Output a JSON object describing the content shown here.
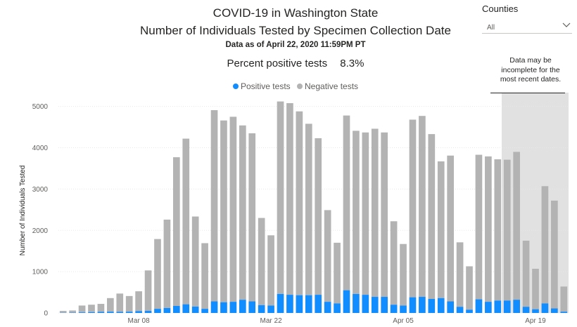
{
  "header": {
    "title_line1": "COVID-19 in Washington State",
    "title_line2": "Number of Individuals Tested by Specimen Collection Date",
    "as_of": "Data as of April 22, 2020 11:59PM PT",
    "percent_label": "Percent positive tests",
    "percent_value": "8.3%"
  },
  "filter": {
    "label": "Counties",
    "value": "All"
  },
  "note": {
    "text": "Data may be incomplete for the most recent dates."
  },
  "colors": {
    "positive": "#118DFF",
    "negative": "#B3B3B3",
    "incomplete_shade": "#E1E1E1",
    "grid": "#E8E8E8"
  },
  "chart_data": {
    "type": "bar",
    "stacked": true,
    "title": "Number of Individuals Tested by Specimen Collection Date",
    "xlabel": "",
    "ylabel": "Number of Individuals Tested",
    "ylim": [
      0,
      5300
    ],
    "yticks": [
      0,
      1000,
      2000,
      3000,
      4000,
      5000
    ],
    "ytick_labels": [
      "0",
      "1000",
      "2000",
      "3000",
      "4000",
      "5000"
    ],
    "grid": true,
    "legend_position": "top-center",
    "xtick_labels": [
      {
        "label": "Mar 08",
        "index": 8
      },
      {
        "label": "Mar 22",
        "index": 22
      },
      {
        "label": "Apr 05",
        "index": 36
      },
      {
        "label": "Apr 19",
        "index": 50
      }
    ],
    "categories": [
      "Feb 29",
      "Mar 01",
      "Mar 02",
      "Mar 03",
      "Mar 04",
      "Mar 05",
      "Mar 06",
      "Mar 07",
      "Mar 08",
      "Mar 09",
      "Mar 10",
      "Mar 11",
      "Mar 12",
      "Mar 13",
      "Mar 14",
      "Mar 15",
      "Mar 16",
      "Mar 17",
      "Mar 18",
      "Mar 19",
      "Mar 20",
      "Mar 21",
      "Mar 22",
      "Mar 23",
      "Mar 24",
      "Mar 25",
      "Mar 26",
      "Mar 27",
      "Mar 28",
      "Mar 29",
      "Mar 30",
      "Mar 31",
      "Apr 01",
      "Apr 02",
      "Apr 03",
      "Apr 04",
      "Apr 05",
      "Apr 06",
      "Apr 07",
      "Apr 08",
      "Apr 09",
      "Apr 10",
      "Apr 11",
      "Apr 12",
      "Apr 13",
      "Apr 14",
      "Apr 15",
      "Apr 16",
      "Apr 17",
      "Apr 18",
      "Apr 19",
      "Apr 20",
      "Apr 21",
      "Apr 22"
    ],
    "series": [
      {
        "name": "Positive tests",
        "values": [
          5,
          8,
          15,
          20,
          25,
          30,
          25,
          30,
          45,
          50,
          100,
          120,
          170,
          210,
          155,
          100,
          280,
          260,
          270,
          320,
          280,
          190,
          180,
          460,
          440,
          430,
          430,
          440,
          270,
          230,
          550,
          460,
          440,
          390,
          390,
          200,
          180,
          380,
          390,
          340,
          360,
          280,
          150,
          80,
          330,
          270,
          300,
          300,
          320,
          150,
          90,
          230,
          110,
          30
        ]
      },
      {
        "name": "Negative tests",
        "values": [
          45,
          52,
          165,
          180,
          195,
          330,
          445,
          380,
          480,
          980,
          1690,
          2140,
          3600,
          4010,
          2180,
          1590,
          4630,
          4400,
          4480,
          4220,
          4070,
          2110,
          1700,
          4660,
          4640,
          4450,
          4150,
          3790,
          2220,
          1470,
          4230,
          3950,
          3930,
          4070,
          3980,
          2020,
          1490,
          4300,
          4380,
          3990,
          3310,
          3530,
          1560,
          1050,
          3500,
          3520,
          3420,
          3410,
          3580,
          1600,
          980,
          2840,
          2610,
          610
        ]
      }
    ],
    "incomplete_from_index": 47,
    "annotation": "Data may be incomplete for the most recent dates."
  }
}
